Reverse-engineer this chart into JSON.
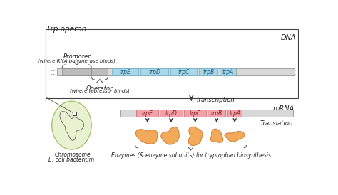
{
  "title": "Trp operon",
  "bg_color": "#ffffff",
  "dna_label": "DNA",
  "mrna_label": "mRNA",
  "transcription_label": "Transcription",
  "translation_label": "Translation",
  "promoter_label": "Promoter",
  "promoter_sub": "(where RNA polymerase binds)",
  "operator_label": "Operator",
  "operator_sub": "(where repressor binds)",
  "chromosome_label": "Chromosome",
  "ecoli_label": "E. coli bacterium",
  "enzymes_label": "Enzymes (& enzyme subunits) for tryptophan biosynthesis",
  "gene_names": [
    "trpE",
    "trpD",
    "trpC",
    "trpB",
    "trpA"
  ],
  "dna_gene_color": "#a8d8e8",
  "mrna_gene_color": "#f4a0a8",
  "dna_bar_color": "#d8d8d8",
  "enzyme_fill": "#f2aa5a",
  "enzyme_edge": "#d4853a",
  "box_outline": "#444444",
  "cell_fill": "#e8f2d0",
  "cell_edge": "#a8c070",
  "arrow_color": "#333333",
  "text_color": "#222222",
  "gray_segment": "#c8c8c8",
  "gene_edge_dna": "#6ab0cc",
  "gene_edge_mrna": "#cc7070"
}
